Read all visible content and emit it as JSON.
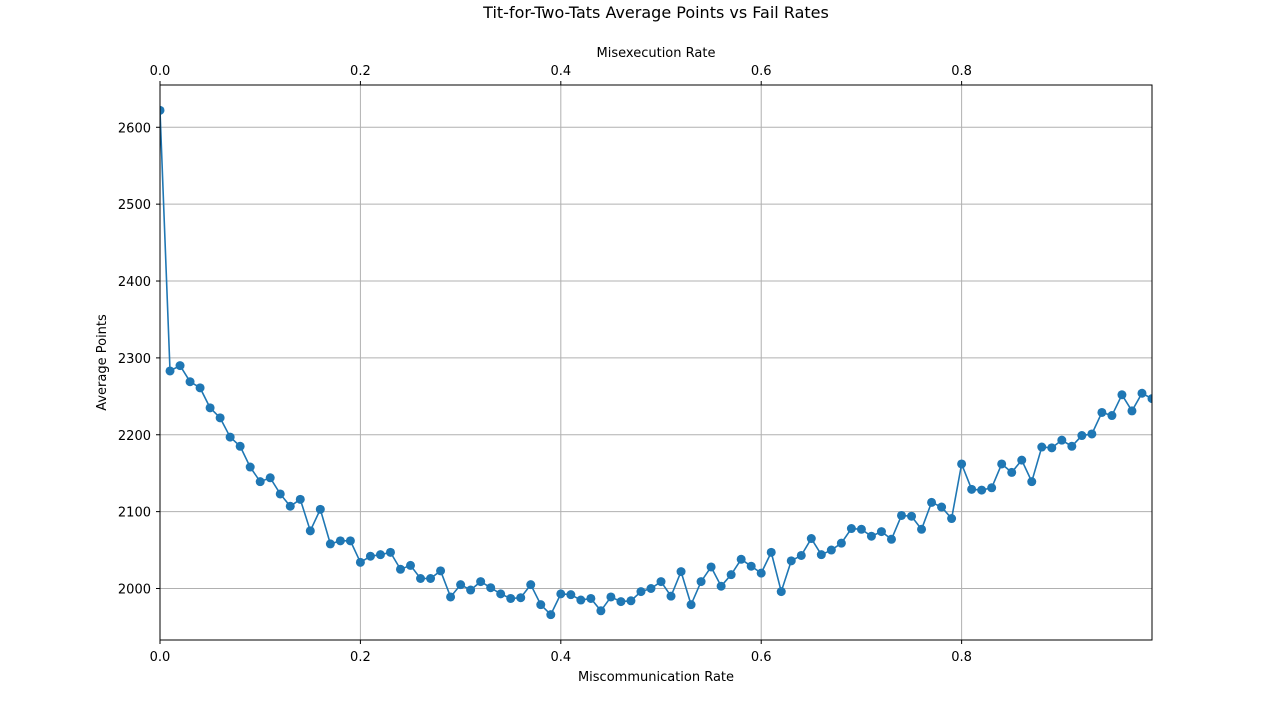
{
  "chart_data": {
    "type": "line",
    "title": "Tit-for-Two-Tats Average Points vs Fail Rates",
    "xlabel": "Miscommunication Rate",
    "x2label": "Misexecution Rate",
    "ylabel": "Average Points",
    "xlim": [
      0,
      0.99
    ],
    "ylim": [
      1933,
      2655
    ],
    "grid": true,
    "x_ticks": [
      "0.0",
      "0.2",
      "0.4",
      "0.6",
      "0.8"
    ],
    "x_tick_values": [
      0,
      0.2,
      0.4,
      0.6,
      0.8
    ],
    "x2_ticks": [
      "0.0",
      "0.2",
      "0.4",
      "0.6",
      "0.8"
    ],
    "x2_tick_values": [
      0,
      0.2,
      0.4,
      0.6,
      0.8
    ],
    "y_ticks": [
      "2000",
      "2100",
      "2200",
      "2300",
      "2400",
      "2500",
      "2600"
    ],
    "y_tick_values": [
      2000,
      2100,
      2200,
      2300,
      2400,
      2500,
      2600
    ],
    "series": [
      {
        "color": "#1f77b4",
        "x": [
          0.0,
          0.01,
          0.02,
          0.03,
          0.04,
          0.05,
          0.06,
          0.07,
          0.08,
          0.09,
          0.1,
          0.11,
          0.12,
          0.13,
          0.14,
          0.15,
          0.16,
          0.17,
          0.18,
          0.19,
          0.2,
          0.21,
          0.22,
          0.23,
          0.24,
          0.25,
          0.26,
          0.27,
          0.28,
          0.29,
          0.3,
          0.31,
          0.32,
          0.33,
          0.34,
          0.35,
          0.36,
          0.37,
          0.38,
          0.39,
          0.4,
          0.41,
          0.42,
          0.43,
          0.44,
          0.45,
          0.46,
          0.47,
          0.48,
          0.49,
          0.5,
          0.51,
          0.52,
          0.53,
          0.54,
          0.55,
          0.56,
          0.57,
          0.58,
          0.59,
          0.6,
          0.61,
          0.62,
          0.63,
          0.64,
          0.65,
          0.66,
          0.67,
          0.68,
          0.69,
          0.7,
          0.71,
          0.72,
          0.73,
          0.74,
          0.75,
          0.76,
          0.77,
          0.78,
          0.79,
          0.8,
          0.81,
          0.82,
          0.83,
          0.84,
          0.85,
          0.86,
          0.87,
          0.88,
          0.89,
          0.9,
          0.91,
          0.92,
          0.93,
          0.94,
          0.95,
          0.96,
          0.97,
          0.98,
          0.99
        ],
        "y": [
          2622,
          2283,
          2290,
          2269,
          2261,
          2235,
          2222,
          2197,
          2185,
          2158,
          2139,
          2144,
          2123,
          2107,
          2116,
          2075,
          2103,
          2058,
          2062,
          2062,
          2034,
          2042,
          2044,
          2047,
          2025,
          2030,
          2013,
          2013,
          2023,
          1989,
          2005,
          1998,
          2009,
          2001,
          1993,
          1987,
          1988,
          2005,
          1979,
          1966,
          1993,
          1992,
          1985,
          1987,
          1971,
          1989,
          1983,
          1984,
          1996,
          2000,
          2009,
          1990,
          2022,
          1979,
          2009,
          2028,
          2003,
          2018,
          2038,
          2029,
          2020,
          2047,
          1996,
          2036,
          2043,
          2065,
          2044,
          2050,
          2059,
          2078,
          2077,
          2068,
          2074,
          2064,
          2095,
          2094,
          2077,
          2112,
          2106,
          2091,
          2162,
          2129,
          2128,
          2131,
          2162,
          2151,
          2167,
          2139,
          2184,
          2183,
          2193,
          2185,
          2199,
          2201,
          2229,
          2225,
          2252,
          2231,
          2254,
          2247
        ]
      }
    ]
  }
}
